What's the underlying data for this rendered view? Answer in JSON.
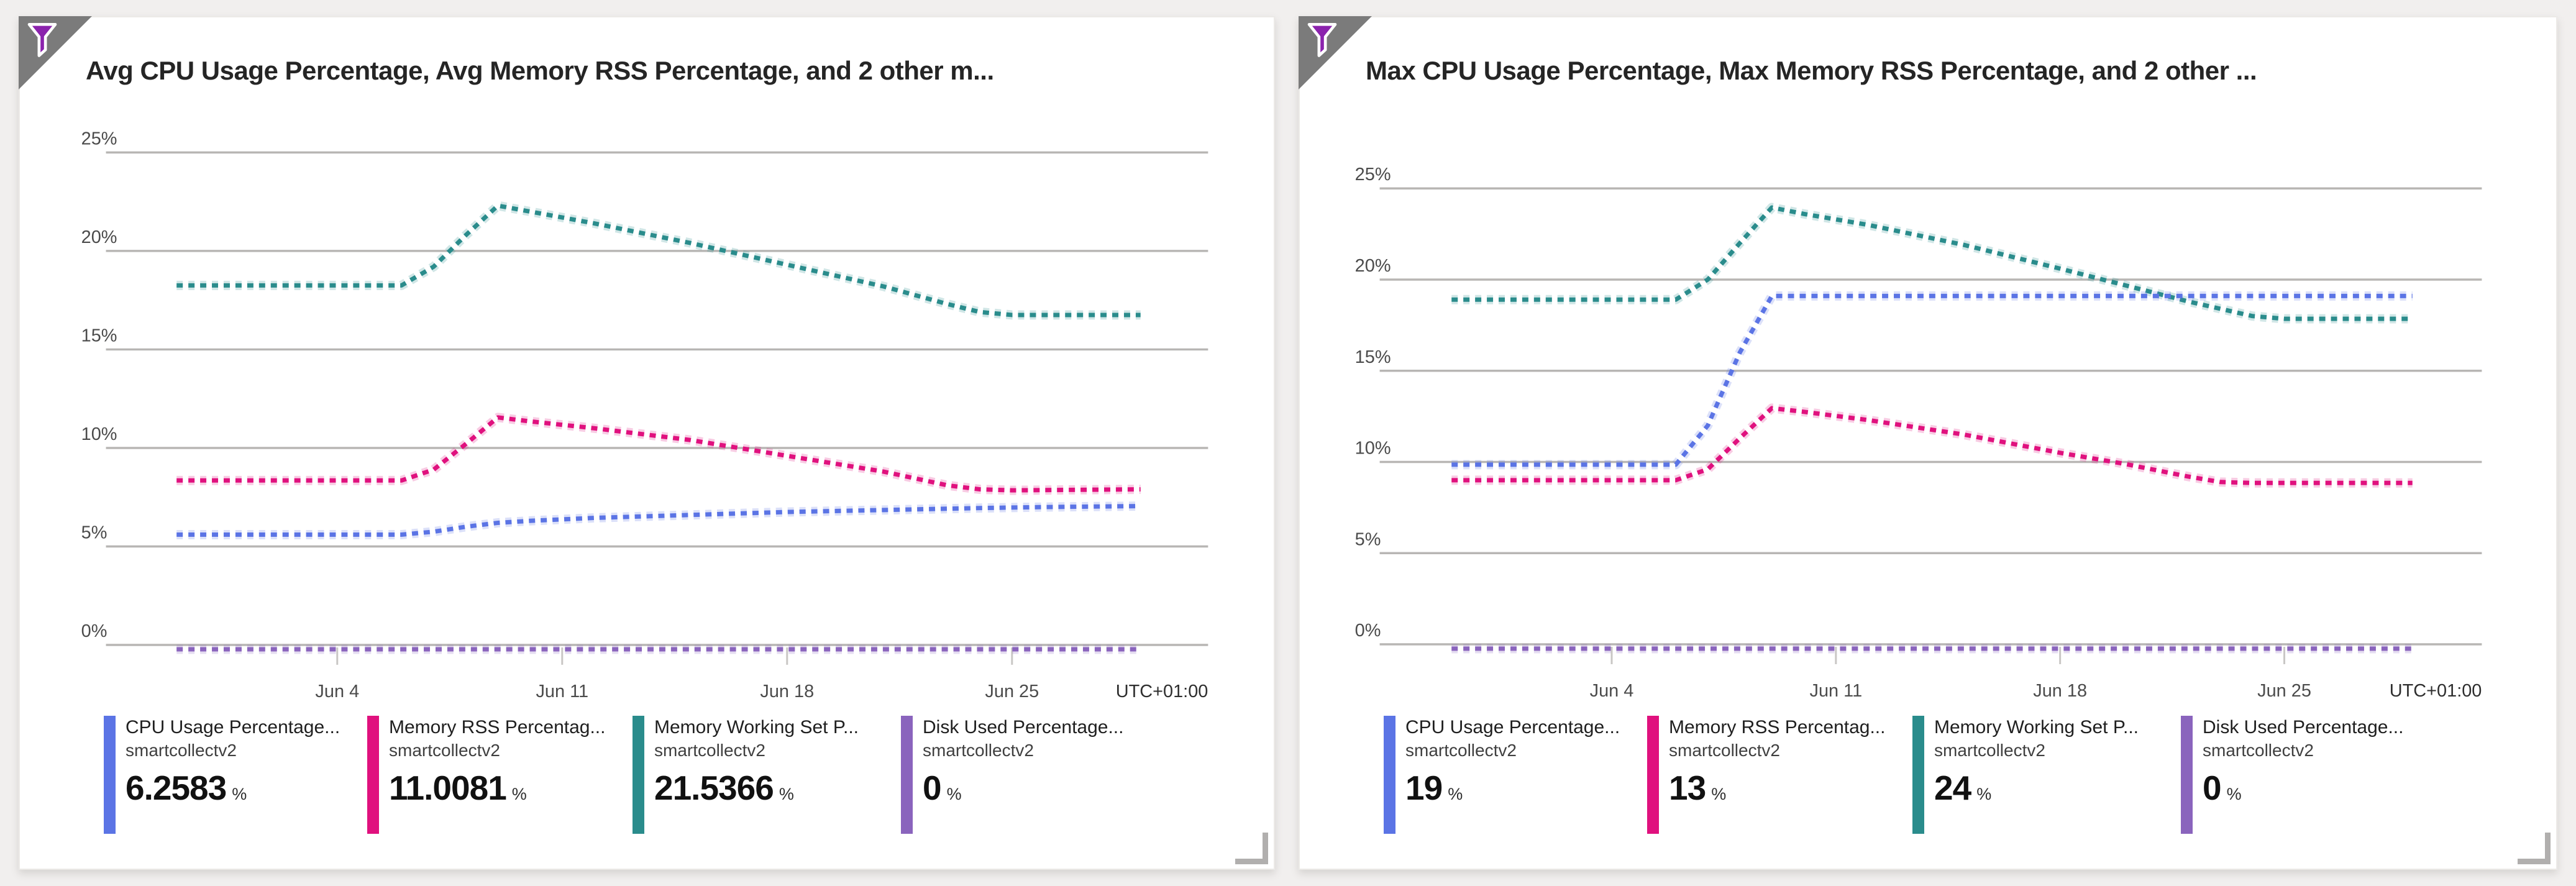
{
  "page": {
    "background": "#f1efee"
  },
  "colors": {
    "cpu": "#5b74e5",
    "memory_rss": "#e0117e",
    "memory_working_set": "#2a8c8c",
    "disk_used": "#8a64bd",
    "gridline": "#b8b6b4",
    "axis_text": "#4b4b4b",
    "corner_triangle": "#7b7b7b",
    "funnel_purple": "#8b22ad"
  },
  "cards": [
    {
      "title": "Avg CPU Usage Percentage, Avg Memory RSS Percentage, and 2 other m...",
      "legend": [
        {
          "label": "CPU Usage Percentage...",
          "resource": "smartcollectv2",
          "value": "6.2583",
          "unit": "%",
          "color": "#5b74e5"
        },
        {
          "label": "Memory RSS Percentag...",
          "resource": "smartcollectv2",
          "value": "11.0081",
          "unit": "%",
          "color": "#e0117e"
        },
        {
          "label": "Memory Working Set P...",
          "resource": "smartcollectv2",
          "value": "21.5366",
          "unit": "%",
          "color": "#2a8c8c"
        },
        {
          "label": "Disk Used Percentage...",
          "resource": "smartcollectv2",
          "value": "0",
          "unit": "%",
          "color": "#8a64bd"
        }
      ]
    },
    {
      "title": "Max CPU Usage Percentage, Max Memory RSS Percentage, and 2 other ...",
      "legend": [
        {
          "label": "CPU Usage Percentage...",
          "resource": "smartcollectv2",
          "value": "19",
          "unit": "%",
          "color": "#5b74e5"
        },
        {
          "label": "Memory RSS Percentag...",
          "resource": "smartcollectv2",
          "value": "13",
          "unit": "%",
          "color": "#e0117e"
        },
        {
          "label": "Memory Working Set P...",
          "resource": "smartcollectv2",
          "value": "24",
          "unit": "%",
          "color": "#2a8c8c"
        },
        {
          "label": "Disk Used Percentage...",
          "resource": "smartcollectv2",
          "value": "0",
          "unit": "%",
          "color": "#8a64bd"
        }
      ]
    }
  ],
  "chart_data": [
    {
      "type": "line",
      "title": "Avg CPU Usage Percentage, Avg Memory RSS Percentage, and 2 other metrics",
      "line_style": "dotted",
      "grid": "horizontal",
      "x_axis": {
        "tick_labels": [
          "Jun 4",
          "Jun 11",
          "Jun 18",
          "Jun 25"
        ],
        "tick_days": [
          5,
          12,
          19,
          26
        ],
        "range_days": [
          0,
          30
        ],
        "timezone": "UTC+01:00"
      },
      "y_axis": {
        "tick_labels": [
          "0%",
          "5%",
          "10%",
          "15%",
          "20%",
          "25%"
        ],
        "ylim": [
          0,
          25
        ],
        "unit": "%"
      },
      "series": [
        {
          "name": "Avg CPU Usage Percentage (smartcollectv2)",
          "color": "#5b74e5",
          "points": [
            [
              0,
              5.6
            ],
            [
              7,
              5.6
            ],
            [
              8,
              5.75
            ],
            [
              9,
              6.0
            ],
            [
              10,
              6.2
            ],
            [
              11,
              6.3
            ],
            [
              13,
              6.45
            ],
            [
              16,
              6.6
            ],
            [
              19,
              6.75
            ],
            [
              22,
              6.85
            ],
            [
              25,
              6.95
            ],
            [
              27,
              7.0
            ],
            [
              30,
              7.05
            ]
          ]
        },
        {
          "name": "Avg Memory RSS Percentage (smartcollectv2)",
          "color": "#e0117e",
          "points": [
            [
              0,
              8.35
            ],
            [
              7,
              8.35
            ],
            [
              8,
              8.9
            ],
            [
              9,
              10.2
            ],
            [
              10,
              11.55
            ],
            [
              11,
              11.35
            ],
            [
              13,
              11.0
            ],
            [
              16,
              10.4
            ],
            [
              19,
              9.6
            ],
            [
              22,
              8.8
            ],
            [
              24,
              8.1
            ],
            [
              25,
              7.9
            ],
            [
              26,
              7.85
            ],
            [
              30,
              7.9
            ]
          ]
        },
        {
          "name": "Avg Memory Working Set Percentage (smartcollectv2)",
          "color": "#2a8c8c",
          "points": [
            [
              0,
              18.25
            ],
            [
              7,
              18.25
            ],
            [
              8,
              19.2
            ],
            [
              9,
              20.8
            ],
            [
              10,
              22.3
            ],
            [
              11,
              22.0
            ],
            [
              13,
              21.4
            ],
            [
              16,
              20.4
            ],
            [
              19,
              19.3
            ],
            [
              22,
              18.2
            ],
            [
              24,
              17.3
            ],
            [
              25,
              16.9
            ],
            [
              26,
              16.75
            ],
            [
              30,
              16.75
            ]
          ]
        },
        {
          "name": "Avg Disk Used Percentage (smartcollectv2)",
          "color": "#8a64bd",
          "points": [
            [
              0,
              0
            ],
            [
              30,
              0
            ]
          ]
        }
      ]
    },
    {
      "type": "line",
      "title": "Max CPU Usage Percentage, Max Memory RSS Percentage, and 2 other metrics",
      "line_style": "dotted",
      "grid": "horizontal",
      "x_axis": {
        "tick_labels": [
          "Jun 4",
          "Jun 11",
          "Jun 18",
          "Jun 25"
        ],
        "tick_days": [
          5,
          12,
          19,
          26
        ],
        "range_days": [
          0,
          30
        ],
        "timezone": "UTC+01:00"
      },
      "y_axis": {
        "tick_labels": [
          "0%",
          "5%",
          "10%",
          "15%",
          "20%",
          "25%"
        ],
        "ylim": [
          0,
          25
        ],
        "unit": "%"
      },
      "series": [
        {
          "name": "Max CPU Usage Percentage (smartcollectv2)",
          "color": "#5b74e5",
          "points": [
            [
              0,
              9.85
            ],
            [
              7,
              9.85
            ],
            [
              8,
              12.0
            ],
            [
              9,
              16.0
            ],
            [
              10,
              19.1
            ],
            [
              30,
              19.1
            ]
          ]
        },
        {
          "name": "Max Memory RSS Percentage (smartcollectv2)",
          "color": "#e0117e",
          "points": [
            [
              0,
              9.0
            ],
            [
              7,
              9.0
            ],
            [
              8,
              9.6
            ],
            [
              9,
              11.3
            ],
            [
              10,
              12.95
            ],
            [
              11,
              12.75
            ],
            [
              13,
              12.3
            ],
            [
              16,
              11.5
            ],
            [
              19,
              10.5
            ],
            [
              21,
              9.9
            ],
            [
              23,
              9.2
            ],
            [
              24,
              8.9
            ],
            [
              25,
              8.85
            ],
            [
              30,
              8.85
            ]
          ]
        },
        {
          "name": "Max Memory Working Set Percentage (smartcollectv2)",
          "color": "#2a8c8c",
          "points": [
            [
              0,
              18.9
            ],
            [
              7,
              18.9
            ],
            [
              8,
              20.0
            ],
            [
              9,
              22.0
            ],
            [
              10,
              23.95
            ],
            [
              11,
              23.6
            ],
            [
              13,
              23.0
            ],
            [
              16,
              21.9
            ],
            [
              19,
              20.6
            ],
            [
              21,
              19.7
            ],
            [
              23,
              18.8
            ],
            [
              25,
              18.0
            ],
            [
              26,
              17.85
            ],
            [
              30,
              17.85
            ]
          ]
        },
        {
          "name": "Max Disk Used Percentage (smartcollectv2)",
          "color": "#8a64bd",
          "points": [
            [
              0,
              0
            ],
            [
              30,
              0
            ]
          ]
        }
      ]
    }
  ]
}
